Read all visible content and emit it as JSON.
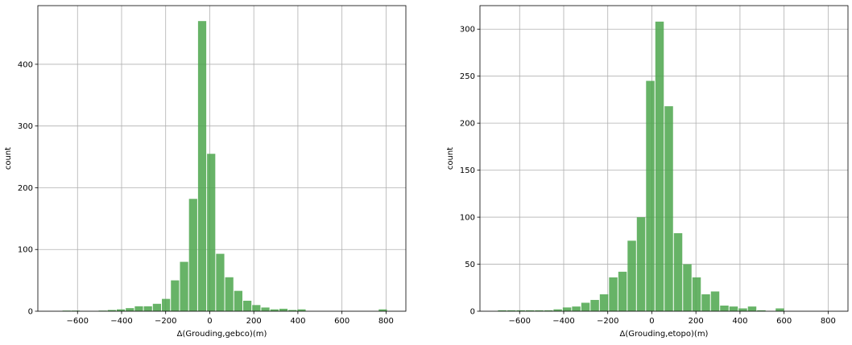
{
  "chart_data": [
    {
      "type": "bar",
      "xlabel": "Δ(Grouding,gebco)(m)",
      "ylabel": "count",
      "xlim": [
        -780,
        890
      ],
      "ylim": [
        0,
        495
      ],
      "xticks": [
        -600,
        -400,
        -200,
        0,
        200,
        400,
        600,
        800
      ],
      "yticks": [
        0,
        100,
        200,
        300,
        400
      ],
      "grid": true,
      "bar_color": "#4ca64c",
      "bin_width": 41,
      "bins_left": [
        -670,
        -629,
        -588,
        -547,
        -506,
        -465,
        -424,
        -383,
        -342,
        -301,
        -260,
        -219,
        -178,
        -137,
        -96,
        -55,
        -14,
        27,
        68,
        109,
        150,
        191,
        232,
        273,
        314,
        355,
        396,
        437,
        478,
        519,
        560,
        601,
        642,
        683,
        724,
        765
      ],
      "values": [
        1,
        1,
        0,
        0,
        1,
        2,
        3,
        5,
        8,
        8,
        12,
        20,
        50,
        80,
        182,
        470,
        255,
        93,
        55,
        33,
        17,
        10,
        6,
        3,
        4,
        2,
        3,
        0,
        0,
        0,
        0,
        0,
        0,
        0,
        0,
        3
      ]
    },
    {
      "type": "bar",
      "xlabel": "Δ(Grouding,etopo)(m)",
      "ylabel": "count",
      "xlim": [
        -780,
        890
      ],
      "ylim": [
        0,
        325
      ],
      "xticks": [
        -600,
        -400,
        -200,
        0,
        200,
        400,
        600,
        800
      ],
      "yticks": [
        0,
        50,
        100,
        150,
        200,
        250,
        300
      ],
      "grid": true,
      "bar_color": "#4ca64c",
      "bin_width": 42,
      "bins_left": [
        -700,
        -658,
        -616,
        -574,
        -532,
        -490,
        -448,
        -406,
        -364,
        -322,
        -280,
        -238,
        -196,
        -154,
        -112,
        -70,
        -28,
        14,
        56,
        98,
        140,
        182,
        224,
        266,
        308,
        350,
        392,
        434,
        476,
        518,
        560,
        602,
        644,
        686,
        728,
        770
      ],
      "values": [
        1,
        1,
        1,
        1,
        1,
        1,
        2,
        4,
        5,
        9,
        12,
        18,
        36,
        42,
        75,
        100,
        245,
        308,
        218,
        83,
        50,
        36,
        18,
        21,
        6,
        5,
        3,
        5,
        1,
        0,
        3,
        0,
        0,
        0,
        0,
        0
      ]
    }
  ]
}
